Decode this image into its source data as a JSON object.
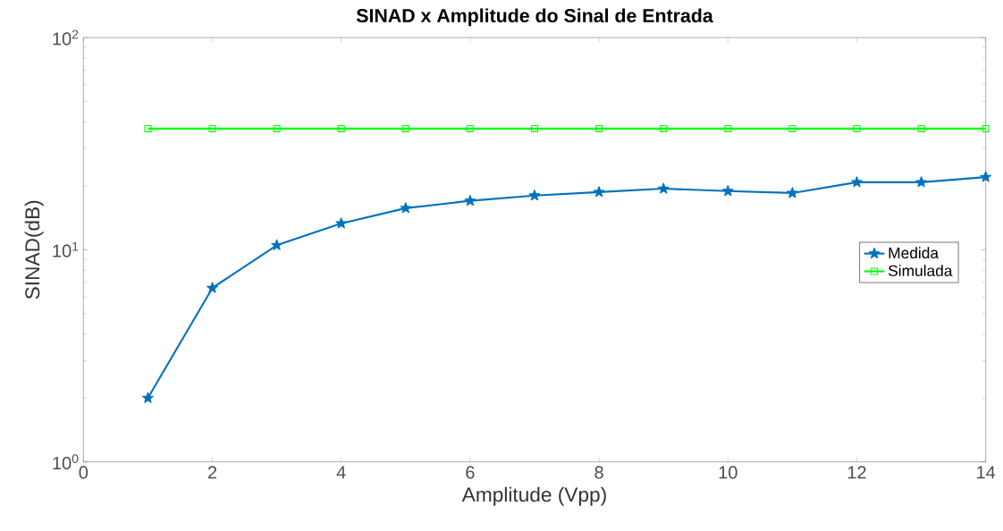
{
  "chart_data": {
    "type": "line",
    "title": "SINAD x Amplitude do Sinal de Entrada",
    "xlabel": "Amplitude (Vpp)",
    "ylabel": "SINAD(dB)",
    "x": [
      1,
      2,
      3,
      4,
      5,
      6,
      7,
      8,
      9,
      10,
      11,
      12,
      13,
      14
    ],
    "series": [
      {
        "name": "Medida",
        "color": "#0072bd",
        "marker": "star",
        "values": [
          2.0,
          6.6,
          10.5,
          13.3,
          15.7,
          17.0,
          18.0,
          18.7,
          19.4,
          18.9,
          18.5,
          20.8,
          20.8,
          22.0
        ]
      },
      {
        "name": "Simulada",
        "color": "#00ff00",
        "marker": "square",
        "values": [
          37.2,
          37.2,
          37.2,
          37.2,
          37.2,
          37.2,
          37.2,
          37.2,
          37.2,
          37.2,
          37.2,
          37.2,
          37.2,
          37.2
        ]
      }
    ],
    "log": "y",
    "xlim": [
      0,
      14
    ],
    "ylim": [
      1,
      100
    ],
    "xticks": [
      0,
      2,
      4,
      6,
      8,
      10,
      12,
      14
    ],
    "yticks": [
      {
        "value": 1,
        "label": "10$^{0}$"
      },
      {
        "value": 10,
        "label": "10$^{1}$"
      },
      {
        "value": 100,
        "label": "10$^{2}$"
      }
    ],
    "grid": false,
    "legend": "right",
    "line_style": "solid"
  }
}
